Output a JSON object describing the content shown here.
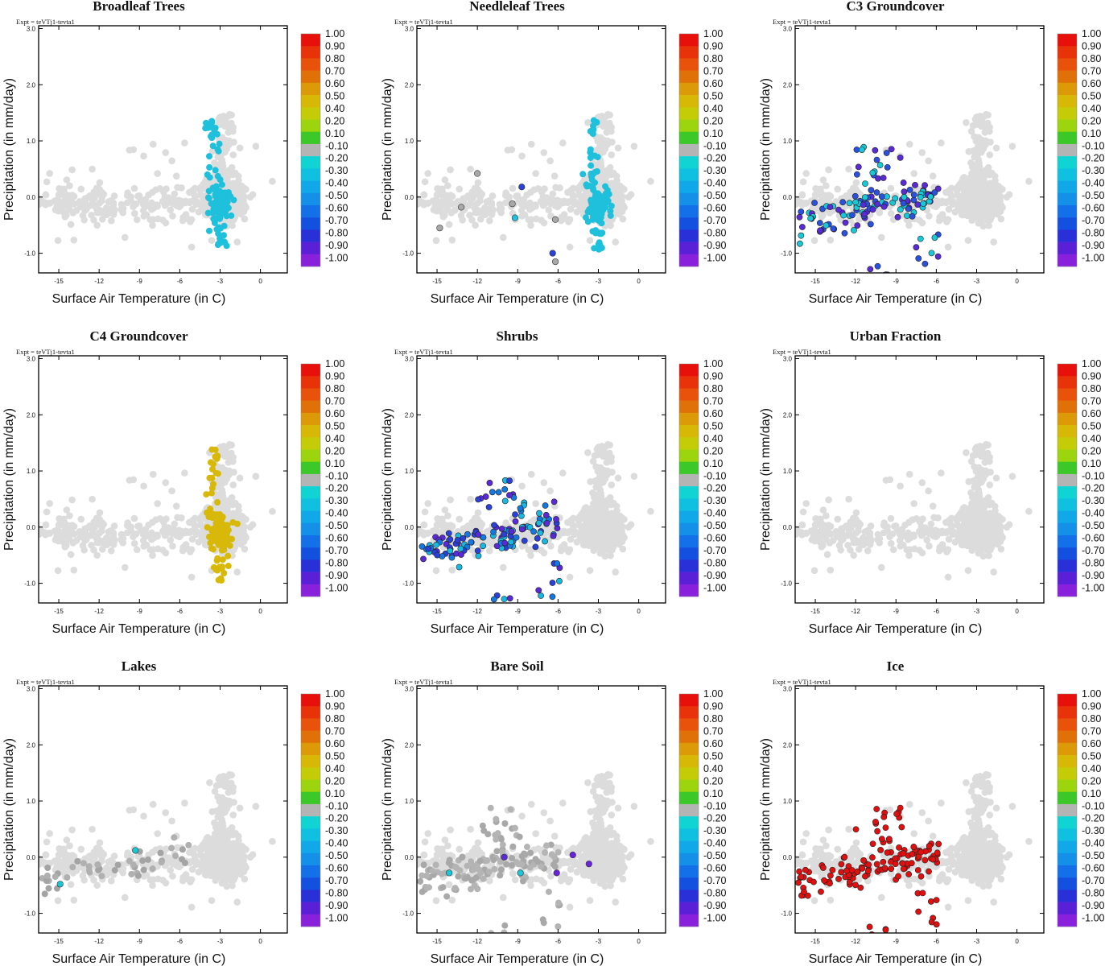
{
  "figure": {
    "expt_label": "Expt = teVTj1-tevta1",
    "xlabel": "Surface Air Temperature (in C)",
    "ylabel": "Precipitation (in mm/day)",
    "xticks": [
      "-15",
      "-12",
      "-9",
      "-6",
      "-3",
      "0"
    ],
    "xtick_values": [
      -15,
      -12,
      -9,
      -6,
      -3,
      0
    ],
    "yticks": [
      "-1.0",
      "0.0",
      "1.0",
      "2.0",
      "3.0"
    ],
    "ytick_values": [
      -1,
      0,
      1,
      2,
      3
    ],
    "xlim": [
      -16.5,
      2.0
    ],
    "ylim": [
      -1.35,
      3.05
    ],
    "background_color": "#dcdcdc",
    "colorbar": {
      "labels": [
        "1.00",
        "0.90",
        "0.80",
        "0.70",
        "0.60",
        "0.50",
        "0.40",
        "0.20",
        "0.10",
        "-0.10",
        "-0.20",
        "-0.30",
        "-0.40",
        "-0.50",
        "-0.60",
        "-0.70",
        "-0.80",
        "-0.90",
        "-1.00"
      ],
      "colors": [
        "#e8100a",
        "#e8320a",
        "#e8520a",
        "#e07008",
        "#dc9a08",
        "#d8b806",
        "#c4cc08",
        "#9cd40e",
        "#3cc828",
        "#b4b4b4",
        "#10d4d4",
        "#10c0e0",
        "#10a8e8",
        "#1490e8",
        "#1470e8",
        "#1450e0",
        "#2a30d8",
        "#5a20d8",
        "#8820dc"
      ]
    }
  },
  "chart_data": [
    {
      "type": "scatter",
      "title": "Broadleaf Trees",
      "pattern": "cluster",
      "color": "#1ec0dc",
      "dark": false,
      "rng_seed": 11
    },
    {
      "type": "scatter",
      "title": "Needleleaf Trees",
      "pattern": "cluster",
      "color": "#1ec0dc",
      "dark": false,
      "rng_seed": 22,
      "extras": [
        {
          "x": -13.2,
          "y": -0.18,
          "c": "#a8a8a8"
        },
        {
          "x": -12.0,
          "y": 0.42,
          "c": "#a8a8a8"
        },
        {
          "x": -9.4,
          "y": -0.12,
          "c": "#a8a8a8"
        },
        {
          "x": -6.2,
          "y": -0.4,
          "c": "#a8a8a8"
        },
        {
          "x": -8.7,
          "y": 0.18,
          "c": "#2a40d8"
        },
        {
          "x": -9.2,
          "y": -0.37,
          "c": "#1ec0dc"
        },
        {
          "x": -6.4,
          "y": -1.0,
          "c": "#2a40d8"
        },
        {
          "x": -6.2,
          "y": -1.15,
          "c": "#a8a8a8"
        },
        {
          "x": -14.8,
          "y": -0.55,
          "c": "#a8a8a8"
        }
      ]
    },
    {
      "type": "scatter",
      "title": "C3 Groundcover",
      "pattern": "spread",
      "colors": [
        "#18c8d8",
        "#5a2ad8",
        "#2a50e0"
      ],
      "dark": true,
      "rng_seed": 33
    },
    {
      "type": "scatter",
      "title": "C4 Groundcover",
      "pattern": "cluster",
      "color": "#d8b808",
      "dark": false,
      "rng_seed": 44
    },
    {
      "type": "scatter",
      "title": "Shrubs",
      "pattern": "spread",
      "colors": [
        "#2a40d8",
        "#18b8e0",
        "#5a2ad8",
        "#1478e0"
      ],
      "dark": true,
      "rng_seed": 55
    },
    {
      "type": "scatter",
      "title": "Urban Fraction",
      "pattern": "none",
      "dark": false,
      "rng_seed": 66
    },
    {
      "type": "scatter",
      "title": "Lakes",
      "pattern": "sparse",
      "colors": [
        "#a4a4a4",
        "#b0b0b0"
      ],
      "dark": false,
      "rng_seed": 77,
      "extras": [
        {
          "x": -9.3,
          "y": 0.12,
          "c": "#18c8d8"
        },
        {
          "x": -14.9,
          "y": -0.48,
          "c": "#18c8d8"
        }
      ]
    },
    {
      "type": "scatter",
      "title": "Bare Soil",
      "pattern": "spread",
      "colors": [
        "#a8a8a8",
        "#b4b4b4"
      ],
      "dark": false,
      "rng_seed": 88,
      "extras": [
        {
          "x": -10.0,
          "y": 0.0,
          "c": "#5a2ad8"
        },
        {
          "x": -14.1,
          "y": -0.28,
          "c": "#18c8d8"
        },
        {
          "x": -8.8,
          "y": -0.28,
          "c": "#18c8d8"
        },
        {
          "x": -6.1,
          "y": -0.28,
          "c": "#6a24d8"
        },
        {
          "x": -4.9,
          "y": 0.04,
          "c": "#6a24d8"
        },
        {
          "x": -3.7,
          "y": -0.12,
          "c": "#6a24d8"
        }
      ]
    },
    {
      "type": "scatter",
      "title": "Ice",
      "pattern": "spread",
      "color": "#e01010",
      "dark": true,
      "rng_seed": 99
    }
  ]
}
